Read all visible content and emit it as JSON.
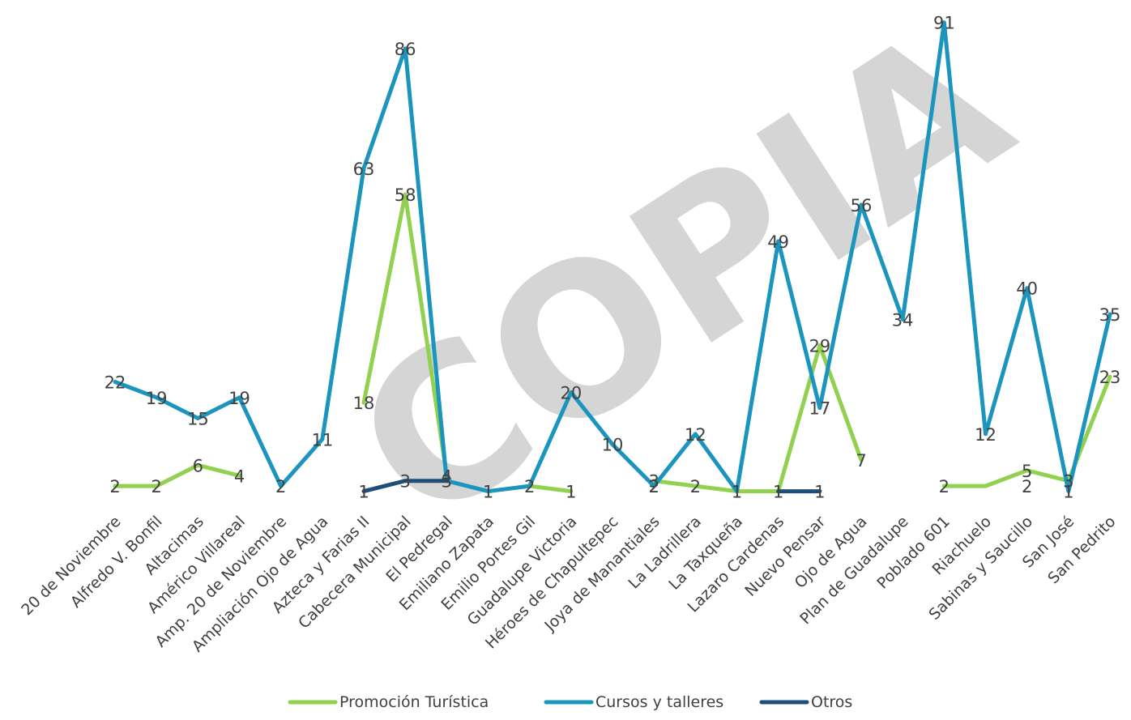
{
  "chart_data": {
    "type": "line",
    "categories": [
      "20 de Noviembre",
      "Alfredo V. Bonfil",
      "Altacimas",
      "Américo Villareal",
      "Amp. 20 de Noviembre",
      "Ampliación Ojo de Agua",
      "Azteca y Farias II",
      "Cabecera Municipal",
      "El Pedregal",
      "Emiliano Zapata",
      "Emilio Portes Gil",
      "Guadalupe Victoria",
      "Héroes de Chapultepec",
      "Joya de Manantiales",
      "La Ladrillera",
      "La Taxqueña",
      "Lazaro Cardenas",
      "Nuevo Pensar",
      "Ojo de Agua",
      "Plan de Guadalupe",
      "Poblado 601",
      "Riachuelo",
      "Sabinas y Saucillo",
      "San José",
      "San Pedrito"
    ],
    "series": [
      {
        "name": "Promoción Turística",
        "color": "#92d050",
        "values": [
          2,
          2,
          6,
          4,
          null,
          null,
          18,
          58,
          4,
          null,
          2,
          1,
          null,
          3,
          2,
          1,
          1,
          29,
          7,
          null,
          2,
          2,
          5,
          3,
          23
        ],
        "labels": [
          "2",
          "2",
          "6",
          "4",
          "",
          "",
          "18",
          "58",
          "4",
          "",
          "",
          "1",
          "",
          "3",
          "2",
          "",
          "1",
          "29",
          "7",
          "",
          "",
          "",
          "5",
          "3",
          "23"
        ]
      },
      {
        "name": "Cursos y talleres",
        "color": "#1b95bd",
        "values": [
          22,
          19,
          15,
          19,
          2,
          11,
          63,
          86,
          3,
          1,
          2,
          20,
          10,
          2,
          12,
          1,
          49,
          17,
          56,
          34,
          91,
          12,
          40,
          1,
          35
        ],
        "labels": [
          "22",
          "19",
          "15",
          "19",
          "2",
          "11",
          "63",
          "86",
          "3",
          "1",
          "2",
          "20",
          "10",
          "2",
          "12",
          "1",
          "49",
          "17",
          "56",
          "34",
          "91",
          "12",
          "40",
          "1",
          "35"
        ]
      },
      {
        "name": "Otros",
        "color": "#1f4e79",
        "values": [
          null,
          null,
          null,
          null,
          null,
          null,
          1,
          3,
          3,
          null,
          null,
          null,
          null,
          2,
          null,
          null,
          1,
          1,
          null,
          null,
          2,
          null,
          2,
          null,
          null
        ],
        "labels": [
          "",
          "",
          "",
          "",
          "",
          "",
          "1",
          "3",
          "",
          "",
          "",
          "",
          "",
          "2",
          "",
          "",
          "",
          "1",
          "",
          "",
          "2",
          "",
          "2",
          "",
          ""
        ]
      }
    ],
    "ylim": [
      0,
      95
    ],
    "watermark": "COPIA",
    "legend_position": "bottom",
    "grid": false
  }
}
